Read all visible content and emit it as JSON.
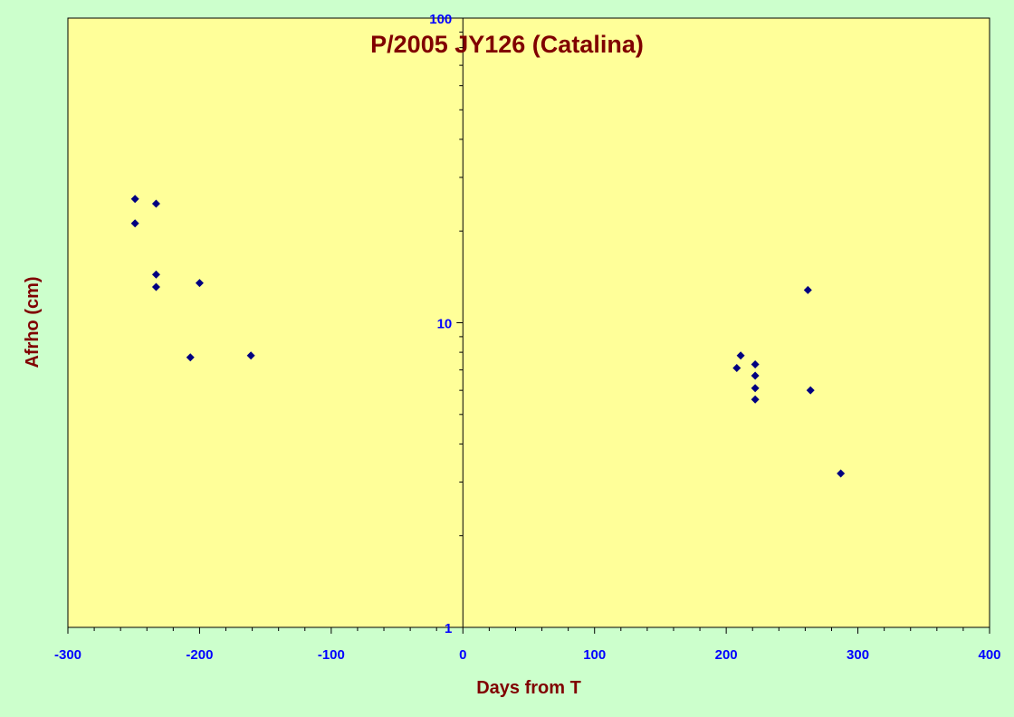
{
  "chart_data": {
    "type": "scatter",
    "title": "P/2005 JY126 (Catalina)",
    "xlabel": "Days from T",
    "ylabel": "Afrho (cm)",
    "xlim": [
      -300,
      400
    ],
    "ylim": [
      1,
      100
    ],
    "y_scale": "log",
    "x_ticks": [
      "-300",
      "-200",
      "-100",
      "0",
      "100",
      "200",
      "300",
      "400"
    ],
    "y_ticks": [
      "1",
      "10",
      "100"
    ],
    "grid": false,
    "legend": "none",
    "colors": {
      "background": "#ccffcc",
      "plot_area": "#ffff99",
      "marker": "#000080",
      "title": "#800000",
      "tick_labels": "#0000ff"
    },
    "series": [
      {
        "marker": "diamond",
        "points": [
          {
            "x": -249,
            "y": 25.5
          },
          {
            "x": -249,
            "y": 21.2
          },
          {
            "x": -233,
            "y": 24.6
          },
          {
            "x": -233,
            "y": 14.4
          },
          {
            "x": -233,
            "y": 13.1
          },
          {
            "x": -200,
            "y": 13.5
          },
          {
            "x": -207,
            "y": 7.7
          },
          {
            "x": -161,
            "y": 7.8
          },
          {
            "x": 208,
            "y": 7.1
          },
          {
            "x": 211,
            "y": 7.8
          },
          {
            "x": 222,
            "y": 7.3
          },
          {
            "x": 222,
            "y": 6.7
          },
          {
            "x": 222,
            "y": 6.1
          },
          {
            "x": 222,
            "y": 5.6
          },
          {
            "x": 262,
            "y": 12.8
          },
          {
            "x": 264,
            "y": 6.0
          },
          {
            "x": 287,
            "y": 3.2
          }
        ]
      }
    ]
  }
}
